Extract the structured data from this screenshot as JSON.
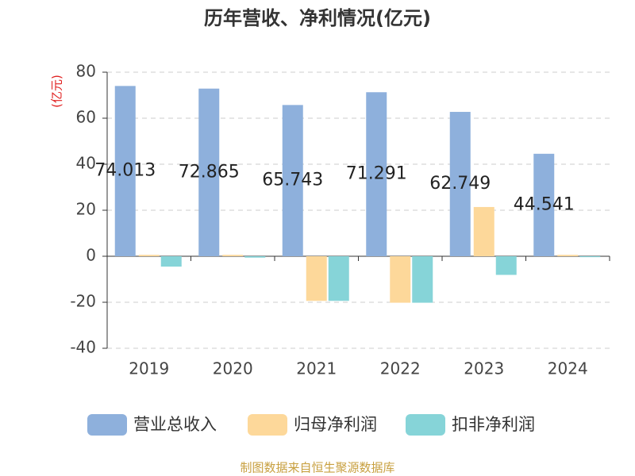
{
  "chart_data": {
    "type": "bar",
    "title": "历年营收、净利情况(亿元)",
    "y_label": "(亿元)",
    "categories": [
      "2019",
      "2020",
      "2021",
      "2022",
      "2023",
      "2024"
    ],
    "series": [
      {
        "name": "营业总收入",
        "color": "#8eb0dc",
        "values": [
          74.013,
          72.865,
          65.743,
          71.291,
          62.749,
          44.541
        ],
        "data_labels": true
      },
      {
        "name": "归母净利润",
        "color": "#fdd89a",
        "values": [
          0.6,
          0.6,
          -19.4,
          -20.2,
          21.4,
          0.6
        ]
      },
      {
        "name": "扣非净利润",
        "color": "#86d4d8",
        "values": [
          -4.5,
          -0.6,
          -19.4,
          -20.2,
          -8.1,
          -0.4
        ]
      }
    ],
    "ylim": [
      -40,
      80
    ],
    "yticks": [
      80,
      60,
      40,
      20,
      0,
      -20,
      -40
    ],
    "grid": true,
    "source": "制图数据来自恒生聚源数据库"
  }
}
